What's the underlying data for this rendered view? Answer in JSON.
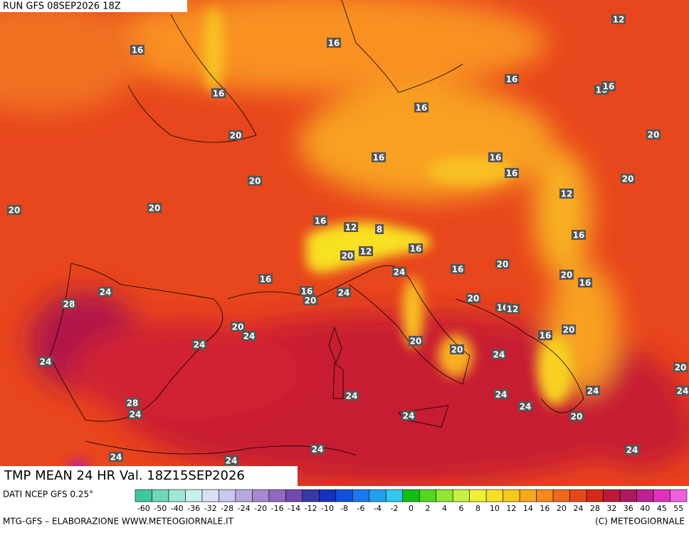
{
  "header": {
    "run": "RUN GFS 08SEP2026 18Z"
  },
  "map": {
    "title": "TMP MEAN 24 HR Val. 18Z15SEP2026",
    "contour_labels": [
      "16",
      "16",
      "12",
      "16",
      "16",
      "16",
      "16",
      "16",
      "20",
      "20",
      "16",
      "16",
      "16",
      "20",
      "20",
      "12",
      "20",
      "20",
      "16",
      "12",
      "8",
      "16",
      "20",
      "12",
      "16",
      "20",
      "16",
      "24",
      "20",
      "16",
      "16",
      "24",
      "16",
      "20",
      "24",
      "28",
      "20",
      "16",
      "12",
      "20",
      "24",
      "20",
      "16",
      "24",
      "20",
      "20",
      "24",
      "24",
      "20",
      "24",
      "24",
      "24",
      "24",
      "28",
      "24",
      "24",
      "24",
      "20",
      "24",
      "24",
      "24",
      "24"
    ]
  },
  "colorbar": {
    "source": "DATI NCEP GFS 0.25°",
    "labels": [
      "-60",
      "-50",
      "-40",
      "-36",
      "-32",
      "-28",
      "-24",
      "-20",
      "-16",
      "-14",
      "-12",
      "-10",
      "-8",
      "-6",
      "-4",
      "-2",
      "0",
      "2",
      "4",
      "6",
      "8",
      "10",
      "12",
      "14",
      "16",
      "20",
      "24",
      "28",
      "32",
      "36",
      "40",
      "45",
      "55"
    ],
    "colors": [
      "#3fc7a0",
      "#6fd8b8",
      "#9fe8d8",
      "#c8f0ee",
      "#d8e0f4",
      "#c8c8ee",
      "#b8a8e0",
      "#a888d0",
      "#9068c0",
      "#7048b0",
      "#3838a8",
      "#1830c0",
      "#1050e0",
      "#1878f0",
      "#20a0f0",
      "#30c8f0",
      "#10c010",
      "#50d820",
      "#90e830",
      "#c8f040",
      "#f0f030",
      "#f8e020",
      "#f8c818",
      "#f8a818",
      "#f88818",
      "#f06818",
      "#e84818",
      "#d82818",
      "#c01838",
      "#b01860",
      "#c02090",
      "#e030c0",
      "#f060e0"
    ]
  },
  "footer": {
    "left": "MTG-GFS – ELABORAZIONE WWW.METEOGIORNALE.IT",
    "right": "(C) METEOGIORNALE"
  }
}
